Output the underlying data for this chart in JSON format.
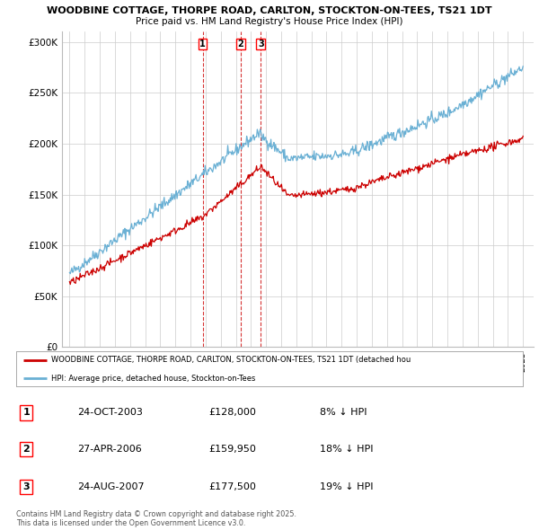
{
  "title1": "WOODBINE COTTAGE, THORPE ROAD, CARLTON, STOCKTON-ON-TEES, TS21 1DT",
  "title2": "Price paid vs. HM Land Registry's House Price Index (HPI)",
  "legend_line1": "WOODBINE COTTAGE, THORPE ROAD, CARLTON, STOCKTON-ON-TEES, TS21 1DT (detached hou",
  "legend_line2": "HPI: Average price, detached house, Stockton-on-Tees",
  "transactions": [
    {
      "label": "1",
      "date": "24-OCT-2003",
      "price": 128000,
      "hpi_diff": "8% ↓ HPI",
      "x_year": 2003.81
    },
    {
      "label": "2",
      "date": "27-APR-2006",
      "price": 159950,
      "hpi_diff": "18% ↓ HPI",
      "x_year": 2006.32
    },
    {
      "label": "3",
      "date": "24-AUG-2007",
      "price": 177500,
      "hpi_diff": "19% ↓ HPI",
      "x_year": 2007.65
    }
  ],
  "hpi_color": "#6ab0d4",
  "price_color": "#cc0000",
  "vline_color": "#cc0000",
  "background_color": "#ffffff",
  "grid_color": "#cccccc",
  "ylim": [
    0,
    310000
  ],
  "xlim_start": 1994.5,
  "xlim_end": 2025.7,
  "copyright_text": "Contains HM Land Registry data © Crown copyright and database right 2025.\nThis data is licensed under the Open Government Licence v3.0."
}
